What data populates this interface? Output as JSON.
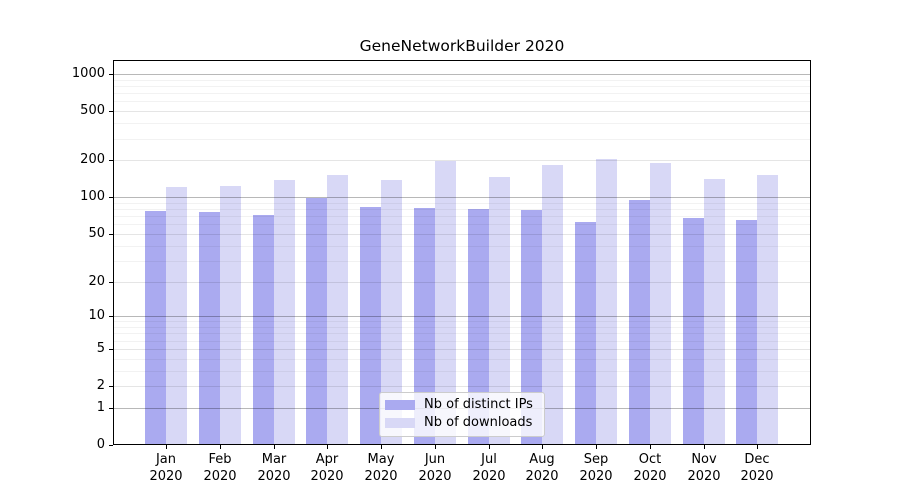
{
  "chart_data": {
    "type": "bar",
    "title": "GeneNetworkBuilder 2020",
    "categories": [
      "Jan 2020",
      "Feb 2020",
      "Mar 2020",
      "Apr 2020",
      "May 2020",
      "Jun 2020",
      "Jul 2020",
      "Aug 2020",
      "Sep 2020",
      "Oct 2020",
      "Nov 2020",
      "Dec 2020"
    ],
    "series": [
      {
        "name": "Nb of distinct IPs",
        "color": "#aaaaf0",
        "values": [
          77,
          76,
          72,
          98,
          83,
          82,
          80,
          79,
          63,
          94,
          68,
          65
        ]
      },
      {
        "name": "Nb of downloads",
        "color": "#d8d8f6",
        "values": [
          120,
          124,
          138,
          151,
          138,
          198,
          147,
          184,
          204,
          189,
          140,
          152
        ]
      }
    ],
    "y_axis": {
      "scale": "log1p",
      "ticks": [
        0,
        1,
        2,
        5,
        10,
        20,
        50,
        100,
        200,
        500,
        1000
      ],
      "decade_ticks": [
        1,
        10,
        100,
        1000
      ],
      "minor_gridlines": [
        3,
        4,
        6,
        7,
        8,
        9,
        30,
        40,
        60,
        70,
        80,
        90,
        300,
        400,
        600,
        700,
        800,
        900
      ]
    },
    "ylim": [
      0,
      1270
    ],
    "grid": true,
    "legend": {
      "position": "lower center",
      "entries": [
        "Nb of distinct IPs",
        "Nb of downloads"
      ]
    },
    "background": "#ffffff"
  }
}
